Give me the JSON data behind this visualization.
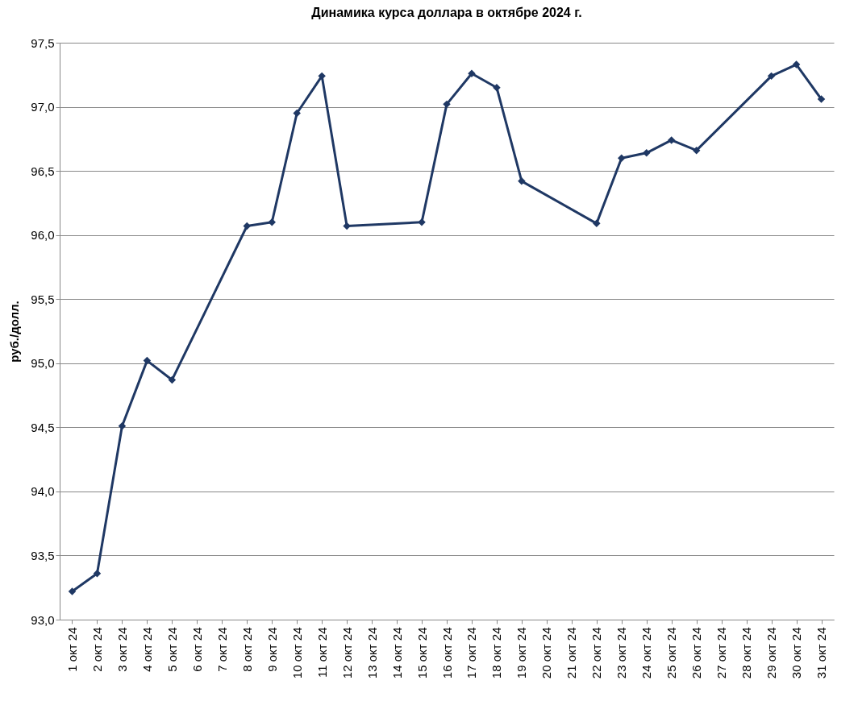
{
  "chart_data": {
    "type": "line",
    "title": "Динамика курса доллара в октябре 2024 г.",
    "ylabel": "руб./долл.",
    "categories": [
      "1 окт 24",
      "2 окт 24",
      "3 окт 24",
      "4 окт 24",
      "5 окт 24",
      "6 окт 24",
      "7 окт 24",
      "8 окт 24",
      "9 окт 24",
      "10 окт 24",
      "11 окт 24",
      "12 окт 24",
      "13 окт 24",
      "14 окт 24",
      "15 окт 24",
      "16 окт 24",
      "17 окт 24",
      "18 окт 24",
      "19 окт 24",
      "20 окт 24",
      "21 окт 24",
      "22 окт 24",
      "23 окт 24",
      "24 окт 24",
      "25 окт 24",
      "26 окт 24",
      "27 окт 24",
      "28 окт 24",
      "29 окт 24",
      "30 окт 24",
      "31 окт 24"
    ],
    "series": [
      {
        "color": "#1f3864",
        "x": [
          "1 окт 24",
          "2 окт 24",
          "3 окт 24",
          "4 окт 24",
          "5 окт 24",
          "8 окт 24",
          "9 окт 24",
          "10 окт 24",
          "11 окт 24",
          "12 окт 24",
          "15 окт 24",
          "16 окт 24",
          "17 окт 24",
          "18 окт 24",
          "19 окт 24",
          "22 окт 24",
          "23 окт 24",
          "24 окт 24",
          "25 окт 24",
          "26 окт 24",
          "29 окт 24",
          "30 окт 24",
          "31 окт 24"
        ],
        "values": [
          93.22,
          93.36,
          94.51,
          95.02,
          94.87,
          96.07,
          96.1,
          96.95,
          97.24,
          96.07,
          96.1,
          97.02,
          97.26,
          97.15,
          96.42,
          96.09,
          96.6,
          96.64,
          96.74,
          96.66,
          97.24,
          97.33,
          97.06
        ]
      }
    ],
    "ylim": [
      93,
      97.5
    ],
    "yticks": [
      {
        "value": 93,
        "label": "93,0"
      },
      {
        "value": 93.5,
        "label": "93,5"
      },
      {
        "value": 94,
        "label": "94,0"
      },
      {
        "value": 94.5,
        "label": "94,5"
      },
      {
        "value": 95,
        "label": "95,0"
      },
      {
        "value": 95.5,
        "label": "95,5"
      },
      {
        "value": 96,
        "label": "96,0"
      },
      {
        "value": 96.5,
        "label": "96,5"
      },
      {
        "value": 97,
        "label": "97,0"
      },
      {
        "value": 97.5,
        "label": "97,5"
      }
    ],
    "grid": "y",
    "marker": "diamond",
    "line_style": "solid"
  }
}
